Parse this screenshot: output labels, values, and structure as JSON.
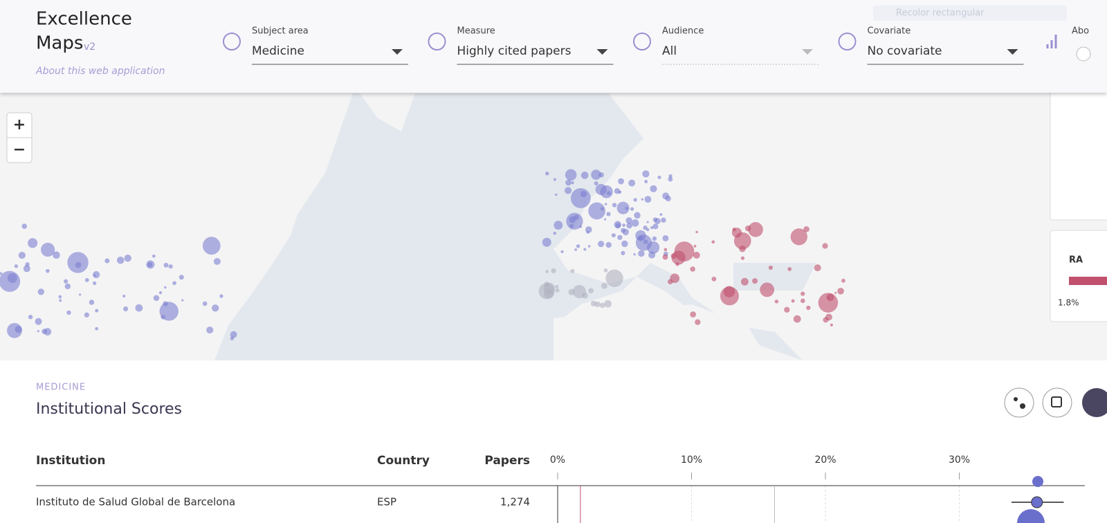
{
  "header": {
    "title_line1": "Excellence",
    "title_line2": "Maps",
    "version": "v2",
    "about_link": "About this web application",
    "faint_text": "Recolor rectangular",
    "filters": [
      {
        "label": "Subject area",
        "value": "Medicine"
      },
      {
        "label": "Measure",
        "value": "Highly cited papers"
      },
      {
        "label": "Audience",
        "value": "All"
      },
      {
        "label": "Covariate",
        "value": "No covariate"
      }
    ],
    "cut_label": "Abo"
  },
  "map": {
    "zoom_in": "+",
    "zoom_out": "−",
    "legend": {
      "title": "RA",
      "min_label": "1.8%"
    }
  },
  "section": {
    "eyebrow": "MEDICINE",
    "title": "Institutional Scores"
  },
  "table": {
    "headers": [
      "Institution",
      "Country",
      "Papers"
    ],
    "axis_ticks": [
      {
        "value": 0,
        "label": "0%"
      },
      {
        "value": 10,
        "label": "10%"
      },
      {
        "value": 20,
        "label": "20%"
      },
      {
        "value": 30,
        "label": "30%"
      }
    ],
    "reference_lines": [
      1.7,
      16.2
    ],
    "rows": [
      {
        "institution": "Instituto de Salud Global de Barcelona",
        "country": "ESP",
        "papers": "1,274",
        "score": 35.8,
        "ci": [
          33.9,
          37.8
        ]
      }
    ]
  }
}
